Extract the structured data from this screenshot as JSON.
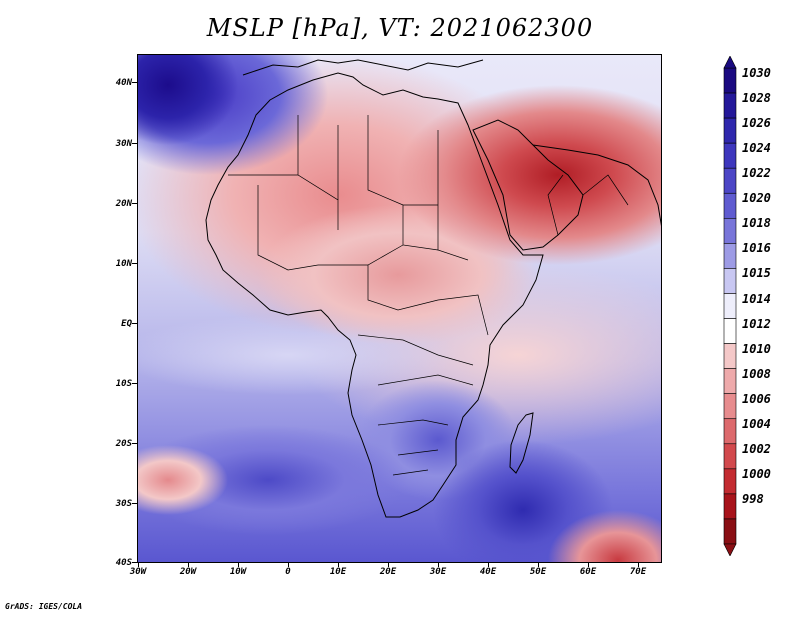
{
  "title": "MSLP [hPa], VT: 2021062300",
  "footer": "GrADS: IGES/COLA",
  "y_axis": {
    "labels": [
      "40N",
      "30N",
      "20N",
      "10N",
      "EQ",
      "10S",
      "20S",
      "30S",
      "40S"
    ]
  },
  "x_axis": {
    "labels": [
      "30W",
      "20W",
      "10W",
      "0",
      "10E",
      "20E",
      "30E",
      "40E",
      "50E",
      "60E",
      "70E"
    ]
  },
  "colorbar": {
    "labels": [
      "1030",
      "1028",
      "1026",
      "1024",
      "1022",
      "1020",
      "1018",
      "1016",
      "1015",
      "1014",
      "1012",
      "1010",
      "1008",
      "1006",
      "1004",
      "1002",
      "1000",
      "998"
    ],
    "colors": [
      "#1a0a80",
      "#24189a",
      "#2f27ad",
      "#3d36bd",
      "#4c46c6",
      "#5f5bd0",
      "#7875d9",
      "#9d9be5",
      "#c8c7f2",
      "#eeeefb",
      "#ffffff",
      "#f4c8c8",
      "#eeaaab",
      "#e78c8e",
      "#dd6a6d",
      "#d2494d",
      "#c32b31",
      "#a8131b",
      "#8a0f14"
    ]
  },
  "chart_data": {
    "type": "heatmap",
    "title": "MSLP [hPa], VT: 2021062300",
    "variable": "Mean sea level pressure",
    "units": "hPa",
    "valid_time": "2021062300",
    "lon_range": [
      -30,
      75
    ],
    "lat_range": [
      -40,
      45
    ],
    "color_levels": [
      998,
      1000,
      1002,
      1004,
      1006,
      1008,
      1010,
      1012,
      1014,
      1015,
      1016,
      1018,
      1020,
      1022,
      1024,
      1026,
      1028,
      1030
    ]
  }
}
